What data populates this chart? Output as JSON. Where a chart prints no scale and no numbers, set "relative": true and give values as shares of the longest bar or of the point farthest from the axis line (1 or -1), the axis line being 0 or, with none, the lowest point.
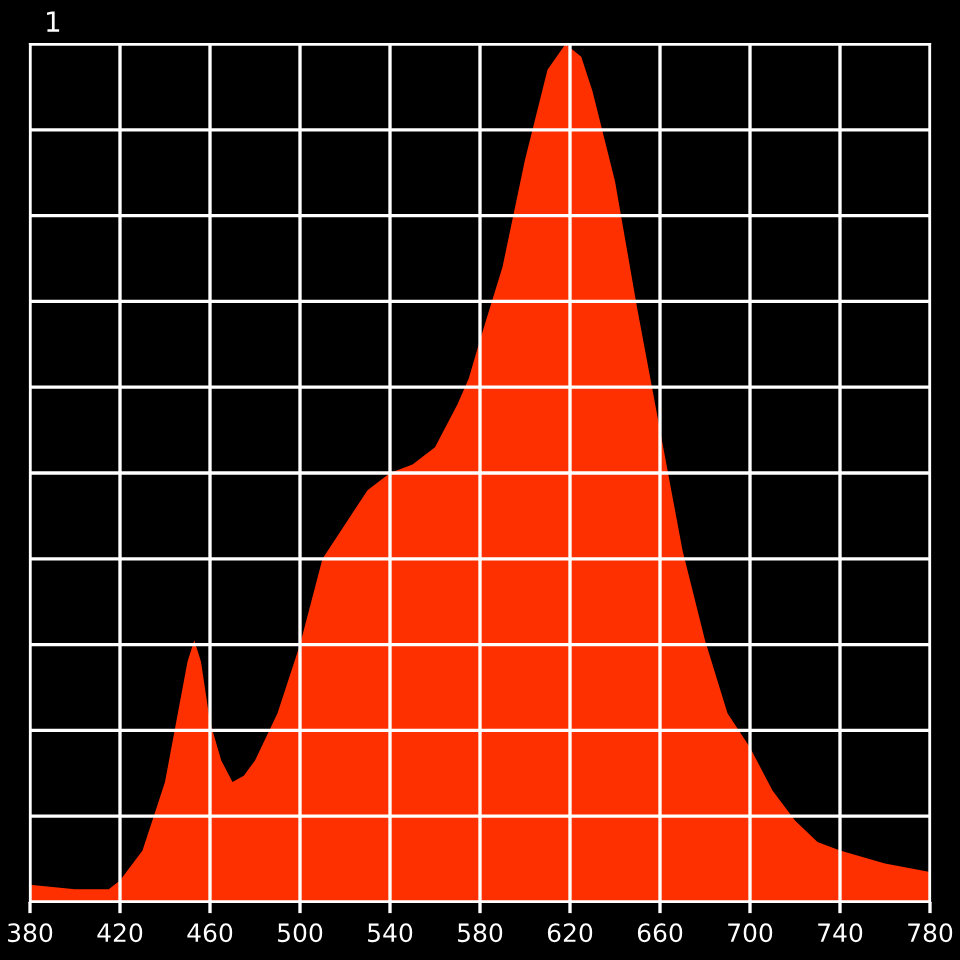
{
  "chart_data": {
    "type": "area",
    "relative": true,
    "annotations": [
      "1"
    ],
    "grid": true,
    "x": [
      380,
      400,
      415,
      420,
      430,
      440,
      445,
      450,
      453,
      456,
      460,
      465,
      470,
      475,
      480,
      490,
      500,
      505,
      510,
      520,
      530,
      540,
      550,
      560,
      570,
      575,
      580,
      590,
      600,
      610,
      618,
      625,
      630,
      640,
      650,
      660,
      670,
      680,
      690,
      700,
      710,
      720,
      730,
      740,
      760,
      780
    ],
    "values": [
      0.02,
      0.015,
      0.015,
      0.025,
      0.06,
      0.14,
      0.21,
      0.28,
      0.305,
      0.28,
      0.21,
      0.165,
      0.14,
      0.147,
      0.165,
      0.22,
      0.3,
      0.35,
      0.4,
      0.44,
      0.48,
      0.5,
      0.51,
      0.53,
      0.58,
      0.61,
      0.655,
      0.74,
      0.865,
      0.97,
      1.0,
      0.985,
      0.945,
      0.84,
      0.69,
      0.55,
      0.41,
      0.305,
      0.22,
      0.18,
      0.13,
      0.095,
      0.07,
      0.06,
      0.045,
      0.035
    ],
    "color": "#ff3000",
    "xlim": [
      380,
      780
    ],
    "xticks": [
      380,
      420,
      460,
      500,
      540,
      580,
      620,
      660,
      700,
      740,
      780
    ]
  }
}
